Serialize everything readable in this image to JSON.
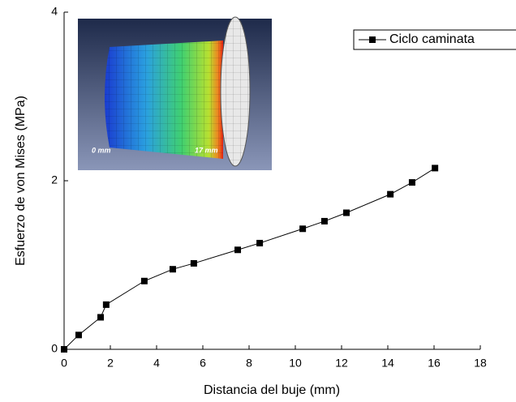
{
  "chart_data": {
    "type": "line",
    "xlabel": "Distancia del buje (mm)",
    "ylabel": "Esfuerzo de von Mises (MPa)",
    "x": [
      0,
      0.63,
      1.58,
      1.82,
      3.47,
      4.7,
      5.61,
      7.51,
      8.46,
      10.32,
      11.26,
      12.21,
      14.11,
      15.05,
      16.04
    ],
    "series": [
      {
        "name": "Ciclo caminata",
        "color": "#000000",
        "values": [
          0,
          0.17,
          0.38,
          0.53,
          0.81,
          0.95,
          1.02,
          1.18,
          1.26,
          1.43,
          1.52,
          1.62,
          1.84,
          1.98,
          2.15
        ]
      }
    ],
    "xlim": [
      0,
      18
    ],
    "ylim": [
      0,
      4
    ],
    "xticks": [
      0,
      2,
      4,
      6,
      8,
      10,
      12,
      14,
      16,
      18
    ],
    "yticks": [
      0,
      2,
      4
    ],
    "legend": "upper right"
  },
  "inset": {
    "labels": [
      "0 mm",
      "17 mm"
    ]
  }
}
